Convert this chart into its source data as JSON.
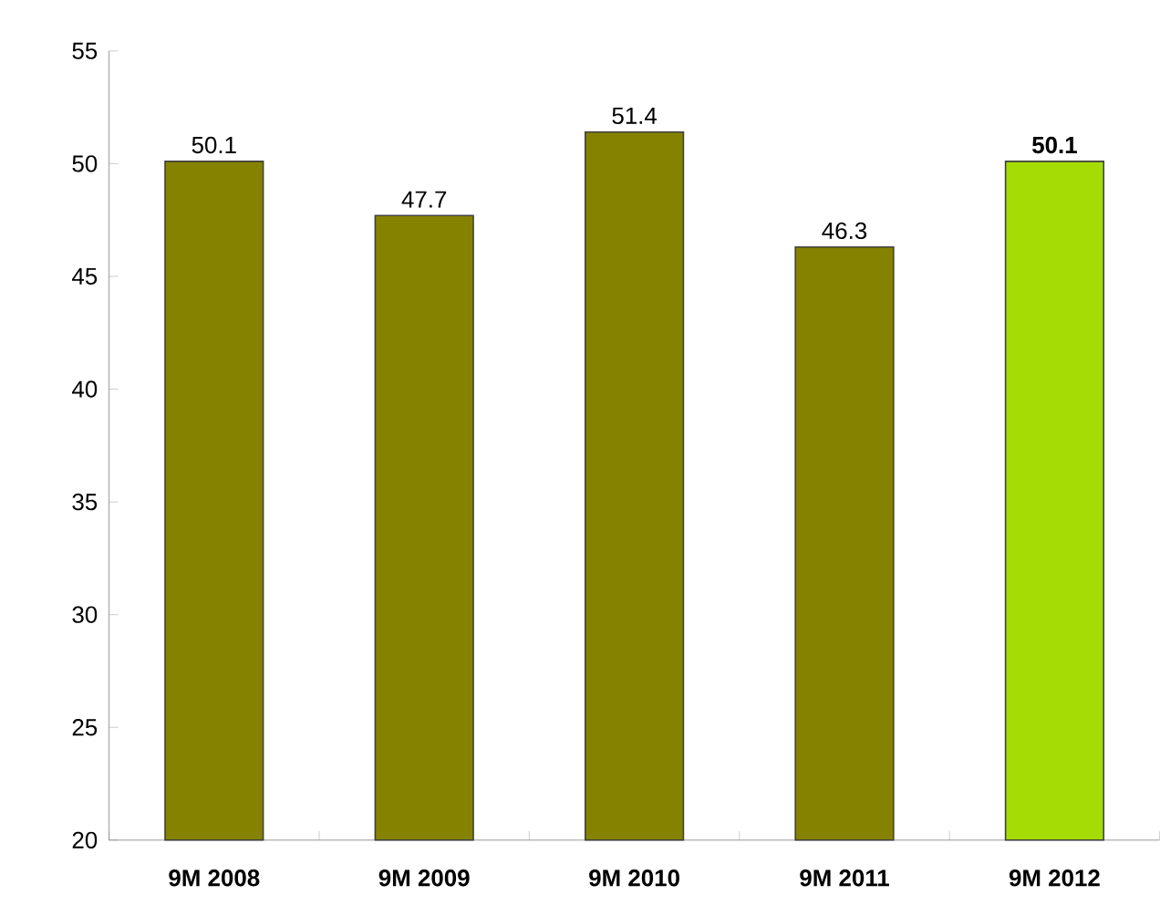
{
  "chart_data": {
    "type": "bar",
    "categories": [
      "9M 2008",
      "9M 2009",
      "9M 2010",
      "9M 2011",
      "9M 2012"
    ],
    "values": [
      50.1,
      47.7,
      51.4,
      46.3,
      50.1
    ],
    "colors": [
      "#858200",
      "#858200",
      "#858200",
      "#858200",
      "#a6dc06"
    ],
    "value_labels": [
      "50.1",
      "47.7",
      "51.4",
      "46.3",
      "**50.1**"
    ],
    "ylim": [
      20,
      55
    ],
    "yticks": [
      20,
      25,
      30,
      35,
      40,
      45,
      50,
      55
    ]
  }
}
